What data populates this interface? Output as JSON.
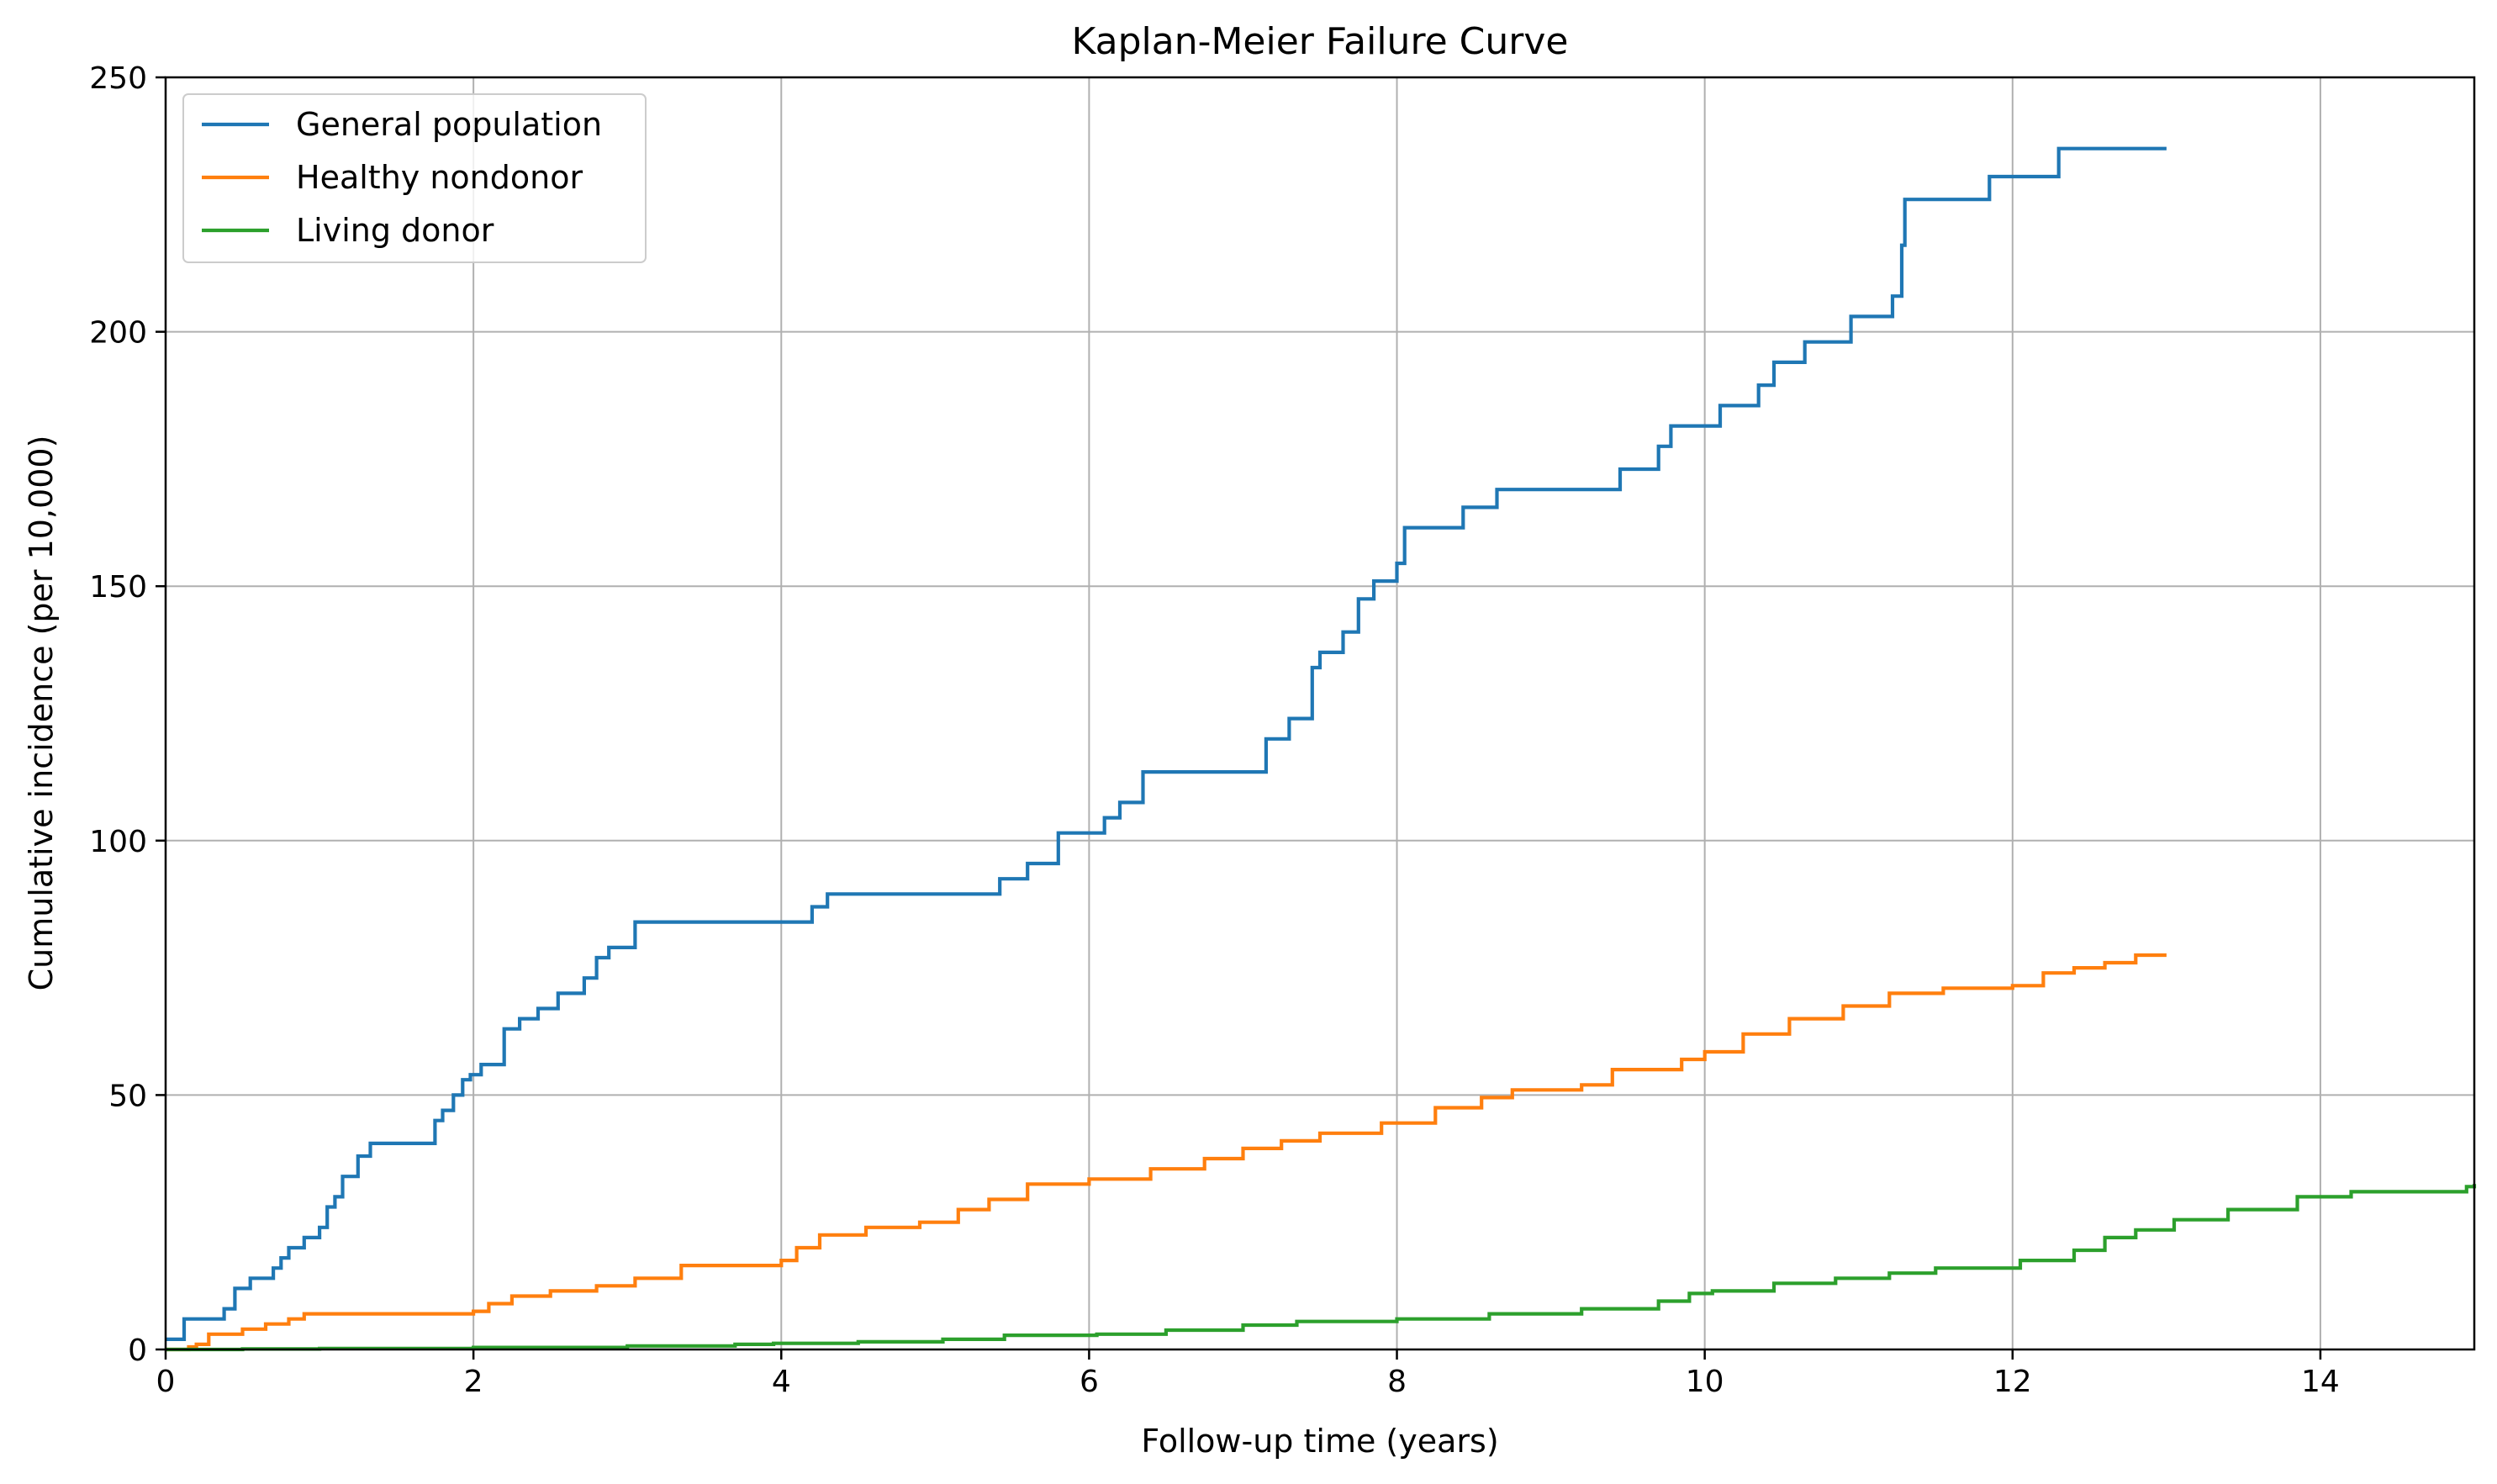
{
  "chart_data": {
    "type": "line",
    "step": true,
    "title": "Kaplan-Meier Failure Curve",
    "xlabel": "Follow-up time (years)",
    "ylabel": "Cumulative incidence (per 10,000)",
    "xlim": [
      0,
      15
    ],
    "ylim": [
      0,
      250
    ],
    "xticks": [
      0,
      2,
      4,
      6,
      8,
      10,
      12,
      14
    ],
    "yticks": [
      0,
      50,
      100,
      150,
      200,
      250
    ],
    "xtick_labels": [
      "0",
      "2",
      "4",
      "6",
      "8",
      "10",
      "12",
      "14"
    ],
    "ytick_labels": [
      "0",
      "50",
      "100",
      "150",
      "200",
      "250"
    ],
    "grid": true,
    "legend_position": "upper-left",
    "series": [
      {
        "name": "General population",
        "color": "#1f77b4",
        "x": [
          0,
          0.12,
          0.38,
          0.45,
          0.55,
          0.7,
          0.75,
          0.8,
          0.9,
          1.0,
          1.05,
          1.1,
          1.15,
          1.25,
          1.33,
          1.75,
          1.8,
          1.87,
          1.93,
          1.98,
          2.05,
          2.2,
          2.3,
          2.42,
          2.55,
          2.72,
          2.8,
          2.88,
          3.05,
          4.2,
          4.3,
          5.42,
          5.6,
          5.8,
          6.1,
          6.2,
          6.35,
          7.15,
          7.3,
          7.45,
          7.5,
          7.65,
          7.75,
          7.85,
          8.0,
          8.05,
          8.43,
          8.65,
          9.45,
          9.7,
          9.78,
          10.1,
          10.35,
          10.45,
          10.65,
          10.95,
          11.22,
          11.28,
          11.3,
          11.85,
          12.3,
          13.0
        ],
        "y": [
          2,
          6,
          8,
          12,
          14,
          16,
          18,
          20,
          22,
          24,
          28,
          30,
          34,
          38,
          40.5,
          45,
          47,
          50,
          53,
          54,
          56,
          63,
          65,
          67,
          70,
          73,
          77,
          79,
          84,
          87,
          89.5,
          92.5,
          95.5,
          101.5,
          104.5,
          107.5,
          113.5,
          120,
          124,
          134,
          137,
          141,
          147.5,
          151,
          154.5,
          161.5,
          165.5,
          169,
          173,
          177.5,
          181.5,
          185.5,
          189.5,
          194,
          198,
          203,
          207,
          217,
          226,
          230.5,
          236,
          236
        ]
      },
      {
        "name": "Healthy nondonor",
        "color": "#ff7f0e",
        "x": [
          0,
          0.15,
          0.2,
          0.28,
          0.5,
          0.65,
          0.8,
          0.9,
          2.0,
          2.1,
          2.25,
          2.5,
          2.8,
          3.05,
          3.35,
          4.0,
          4.1,
          4.25,
          4.55,
          4.9,
          5.15,
          5.35,
          5.6,
          6.0,
          6.4,
          6.75,
          7.0,
          7.25,
          7.5,
          7.9,
          8.25,
          8.55,
          8.75,
          9.2,
          9.4,
          9.85,
          10.0,
          10.25,
          10.55,
          10.9,
          11.2,
          11.55,
          12.0,
          12.2,
          12.4,
          12.6,
          12.8,
          13.0
        ],
        "y": [
          0,
          0.5,
          1,
          3,
          4,
          5,
          6,
          7,
          7.5,
          9,
          10.5,
          11.5,
          12.5,
          14,
          16.5,
          17.5,
          20,
          22.5,
          24,
          25,
          27.5,
          29.5,
          32.5,
          33.5,
          35.5,
          37.5,
          39.5,
          41,
          42.5,
          44.5,
          47.5,
          49.5,
          51,
          52,
          55,
          57,
          58.5,
          62,
          65,
          67.5,
          70,
          71,
          71.5,
          74,
          75,
          76,
          77.5,
          77.5
        ]
      },
      {
        "name": "Living donor",
        "color": "#2ca02c",
        "x": [
          0,
          0.5,
          1.0,
          2.0,
          3.0,
          3.7,
          3.95,
          4.5,
          5.05,
          5.45,
          6.05,
          6.5,
          7.0,
          7.35,
          8.0,
          8.6,
          9.2,
          9.7,
          9.9,
          10.05,
          10.45,
          10.85,
          11.2,
          11.5,
          12.05,
          12.4,
          12.6,
          12.8,
          13.05,
          13.4,
          13.85,
          14.2,
          14.95,
          15.0
        ],
        "y": [
          0,
          0.1,
          0.2,
          0.4,
          0.7,
          1.0,
          1.2,
          1.5,
          2.0,
          2.8,
          3.0,
          3.8,
          4.8,
          5.5,
          6.0,
          7.0,
          8.0,
          9.5,
          11.0,
          11.5,
          13.0,
          14.0,
          15.0,
          16.0,
          17.5,
          19.5,
          22.0,
          23.5,
          25.5,
          27.5,
          30.0,
          31.0,
          32.0,
          32.5
        ]
      }
    ]
  }
}
